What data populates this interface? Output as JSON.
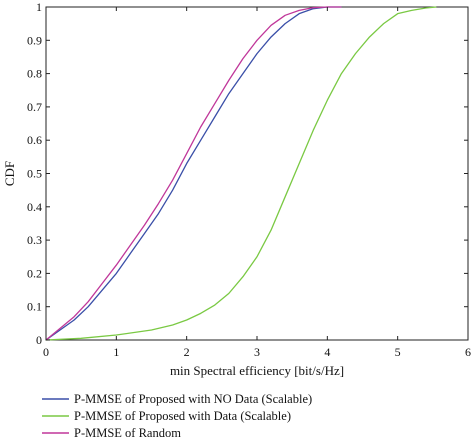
{
  "chart_data": {
    "type": "line",
    "title": "",
    "xlabel": "min Spectral efficiency [bit/s/Hz]",
    "ylabel": "CDF",
    "xlim": [
      0,
      6
    ],
    "ylim": [
      0,
      1
    ],
    "x_ticks": [
      "0",
      "1",
      "2",
      "3",
      "4",
      "5",
      "6"
    ],
    "y_ticks": [
      "0",
      "0.1",
      "0.2",
      "0.3",
      "0.4",
      "0.5",
      "0.6",
      "0.7",
      "0.8",
      "0.9",
      "1"
    ],
    "grid": false,
    "legend_position": "bottom-left, below plot",
    "series": [
      {
        "name": "P-MMSE of Proposed with NO Data (Scalable)",
        "color": "#3a4fa8",
        "points": [
          [
            0,
            0
          ],
          [
            0.2,
            0.03
          ],
          [
            0.4,
            0.06
          ],
          [
            0.6,
            0.1
          ],
          [
            0.8,
            0.15
          ],
          [
            1.0,
            0.2
          ],
          [
            1.2,
            0.26
          ],
          [
            1.4,
            0.32
          ],
          [
            1.6,
            0.38
          ],
          [
            1.8,
            0.45
          ],
          [
            2.0,
            0.53
          ],
          [
            2.2,
            0.6
          ],
          [
            2.4,
            0.67
          ],
          [
            2.6,
            0.74
          ],
          [
            2.8,
            0.8
          ],
          [
            3.0,
            0.86
          ],
          [
            3.2,
            0.91
          ],
          [
            3.4,
            0.95
          ],
          [
            3.6,
            0.98
          ],
          [
            3.8,
            0.995
          ],
          [
            4.0,
            1.0
          ],
          [
            4.2,
            1.0
          ]
        ]
      },
      {
        "name": "P-MMSE of Proposed with Data (Scalable)",
        "color": "#7ac943",
        "points": [
          [
            0,
            0
          ],
          [
            0.5,
            0.005
          ],
          [
            1.0,
            0.015
          ],
          [
            1.5,
            0.03
          ],
          [
            1.8,
            0.045
          ],
          [
            2.0,
            0.06
          ],
          [
            2.2,
            0.08
          ],
          [
            2.4,
            0.105
          ],
          [
            2.6,
            0.14
          ],
          [
            2.8,
            0.19
          ],
          [
            3.0,
            0.25
          ],
          [
            3.2,
            0.33
          ],
          [
            3.4,
            0.43
          ],
          [
            3.6,
            0.53
          ],
          [
            3.8,
            0.63
          ],
          [
            4.0,
            0.72
          ],
          [
            4.2,
            0.8
          ],
          [
            4.4,
            0.86
          ],
          [
            4.6,
            0.91
          ],
          [
            4.8,
            0.95
          ],
          [
            5.0,
            0.98
          ],
          [
            5.2,
            0.99
          ],
          [
            5.4,
            0.997
          ],
          [
            5.55,
            1.0
          ]
        ]
      },
      {
        "name": "P-MMSE of Random",
        "color": "#c0379a",
        "points": [
          [
            0,
            0
          ],
          [
            0.2,
            0.035
          ],
          [
            0.4,
            0.07
          ],
          [
            0.6,
            0.115
          ],
          [
            0.8,
            0.17
          ],
          [
            1.0,
            0.225
          ],
          [
            1.2,
            0.285
          ],
          [
            1.4,
            0.345
          ],
          [
            1.6,
            0.41
          ],
          [
            1.8,
            0.48
          ],
          [
            2.0,
            0.56
          ],
          [
            2.2,
            0.64
          ],
          [
            2.4,
            0.71
          ],
          [
            2.6,
            0.78
          ],
          [
            2.8,
            0.845
          ],
          [
            3.0,
            0.9
          ],
          [
            3.2,
            0.945
          ],
          [
            3.4,
            0.975
          ],
          [
            3.6,
            0.99
          ],
          [
            3.8,
            0.998
          ],
          [
            4.0,
            1.0
          ],
          [
            4.2,
            1.0
          ]
        ]
      }
    ]
  }
}
